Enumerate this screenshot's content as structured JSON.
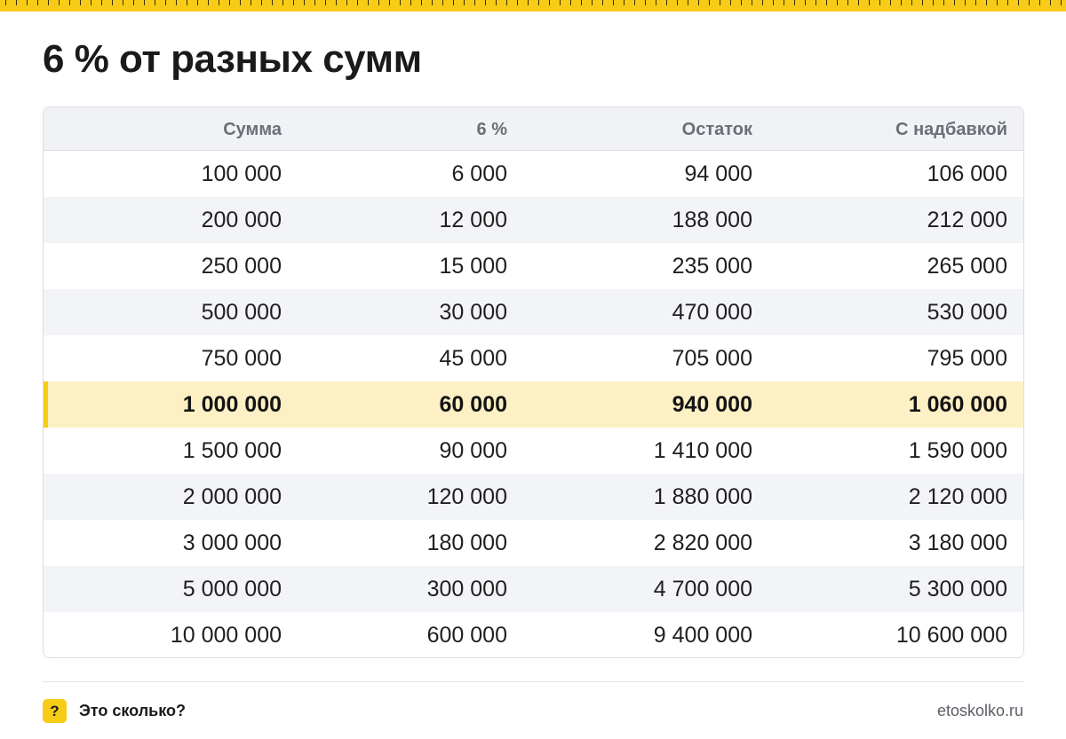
{
  "title": "6 % от разных сумм",
  "table": {
    "headers": [
      "Сумма",
      "6 %",
      "Остаток",
      "С надбавкой"
    ],
    "rows": [
      [
        "100 000",
        "6 000",
        "94 000",
        "106 000"
      ],
      [
        "200 000",
        "12 000",
        "188 000",
        "212 000"
      ],
      [
        "250 000",
        "15 000",
        "235 000",
        "265 000"
      ],
      [
        "500 000",
        "30 000",
        "470 000",
        "530 000"
      ],
      [
        "750 000",
        "45 000",
        "705 000",
        "795 000"
      ],
      [
        "1 000 000",
        "60 000",
        "940 000",
        "1 060 000"
      ],
      [
        "1 500 000",
        "90 000",
        "1 410 000",
        "1 590 000"
      ],
      [
        "2 000 000",
        "120 000",
        "1 880 000",
        "2 120 000"
      ],
      [
        "3 000 000",
        "180 000",
        "2 820 000",
        "3 180 000"
      ],
      [
        "5 000 000",
        "300 000",
        "4 700 000",
        "5 300 000"
      ],
      [
        "10 000 000",
        "600 000",
        "9 400 000",
        "10 600 000"
      ]
    ],
    "highlighted_row": 5
  },
  "footer": {
    "badge": "?",
    "brand": "Это сколько?",
    "site": "etoskolko.ru"
  },
  "colors": {
    "accent": "#f7cc16",
    "highlight_row": "#fcf0c4",
    "alt_row": "#f3f4f7",
    "header_bg": "#f1f2f5"
  }
}
